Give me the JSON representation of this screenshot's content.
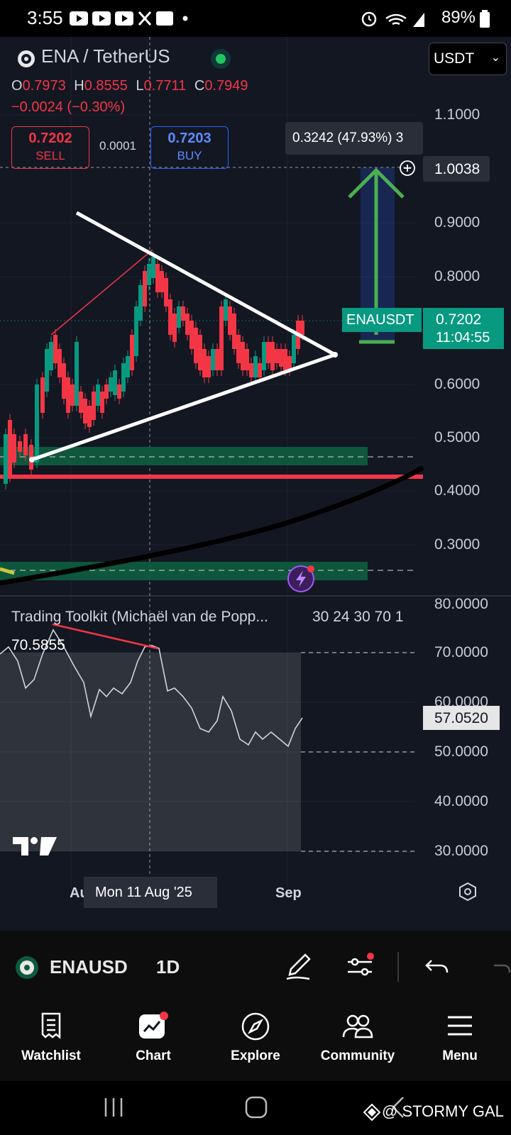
{
  "status": {
    "time": "3:55",
    "battery": "89%",
    "watermark": "@ STORMY GAL"
  },
  "header": {
    "symbol": "ENA / TetherUS",
    "currency": "USDT",
    "o_label": "O",
    "o": "0.7973",
    "h_label": "H",
    "h": "0.8555",
    "l_label": "L",
    "l": "0.7711",
    "c_label": "C",
    "c": "0.7949",
    "change": "−0.0024 (−0.30%)",
    "sell_price": "0.7202",
    "sell_label": "SELL",
    "spread": "0.0001",
    "buy_price": "0.7203",
    "buy_label": "BUY"
  },
  "chart": {
    "price_ticks": [
      "1.1000",
      "0.9000",
      "0.8000",
      "0.6000",
      "0.5000",
      "0.4000",
      "0.3000"
    ],
    "crosshair_price": "1.0038",
    "measure_tooltip": "0.3242 (47.93%) 3",
    "ticker_tag": "ENAUSDT",
    "last_price": "0.7202",
    "countdown": "11:04:55",
    "date_tag": "Mon 11 Aug '25",
    "x_labels": [
      "Au",
      "Sep"
    ]
  },
  "indicator": {
    "title": "Trading Toolkit (Michaël van de Popp...",
    "params": "30 24 30 70 1",
    "peak_value": "70.5855",
    "current_value": "57.0520",
    "ticks": [
      "80.0000",
      "70.0000",
      "60.0000",
      "50.0000",
      "40.0000",
      "30.0000"
    ]
  },
  "toolbar": {
    "symbol": "ENAUSD",
    "interval": "1D"
  },
  "nav": [
    {
      "label": "Watchlist",
      "icon": "watchlist-icon"
    },
    {
      "label": "Chart",
      "icon": "chart-icon"
    },
    {
      "label": "Explore",
      "icon": "compass-icon"
    },
    {
      "label": "Community",
      "icon": "people-icon"
    },
    {
      "label": "Menu",
      "icon": "hamburger-icon"
    }
  ],
  "colors": {
    "up": "#089981",
    "down": "#f23645",
    "accent": "#2962ff",
    "pattern": "#ffffff",
    "target": "#4caf50"
  }
}
